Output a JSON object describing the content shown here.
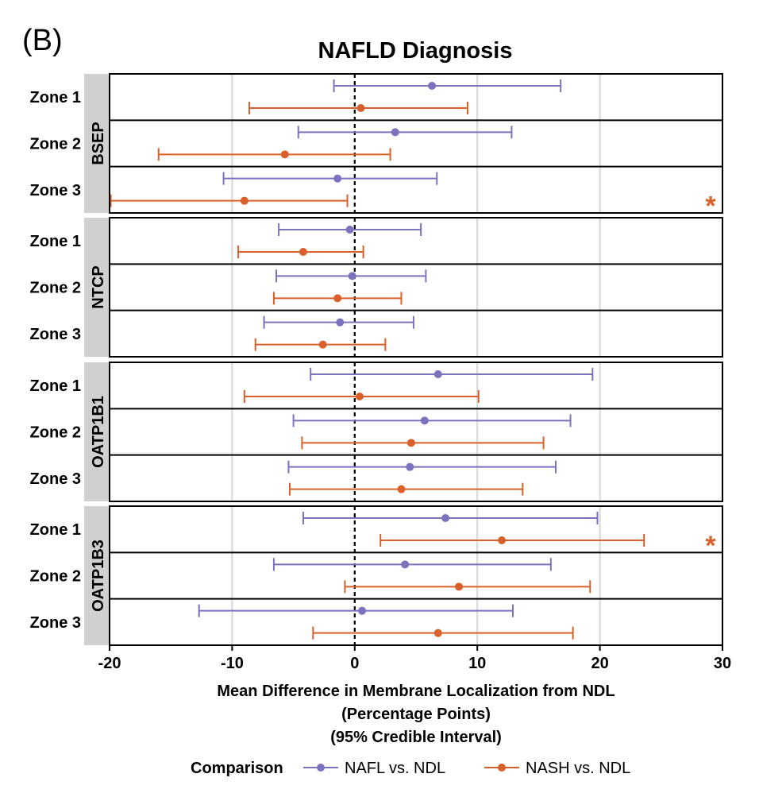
{
  "panel_label": "(B)",
  "chart_data": {
    "type": "forest",
    "title": "NAFLD Diagnosis",
    "xlabel_lines": [
      "Mean Difference in Membrane Localization from NDL",
      "(Percentage Points)",
      "(95% Credible Interval)"
    ],
    "xlim": [
      -20,
      30
    ],
    "xticks": [
      -20,
      -10,
      0,
      10,
      20,
      30
    ],
    "tick_labels": [
      "-20",
      "-10",
      "0",
      "10",
      "20",
      "30"
    ],
    "reference_line": 0,
    "grid": true,
    "legend": {
      "title": "Comparison",
      "position": "bottom",
      "entries": [
        "NAFL vs. NDL",
        "NASH vs. NDL"
      ]
    },
    "colors": {
      "NAFL vs. NDL": "#7b72be",
      "NASH vs. NDL": "#d9602a"
    },
    "facets": [
      {
        "name": "BSEP",
        "zones": [
          {
            "label": "Zone 1",
            "nafl": {
              "mean": 6.3,
              "lower": -1.7,
              "upper": 16.8
            },
            "nash": {
              "mean": 0.5,
              "lower": -8.6,
              "upper": 9.2
            }
          },
          {
            "label": "Zone 2",
            "nafl": {
              "mean": 3.3,
              "lower": -4.6,
              "upper": 12.8
            },
            "nash": {
              "mean": -5.7,
              "lower": -16.0,
              "upper": 2.9
            }
          },
          {
            "label": "Zone 3",
            "nafl": {
              "mean": -1.4,
              "lower": -10.7,
              "upper": 6.7
            },
            "nash": {
              "mean": -9.0,
              "lower": -19.9,
              "upper": -0.6
            }
          }
        ],
        "annotation": {
          "text": "*",
          "zone": 3,
          "row": "nash"
        }
      },
      {
        "name": "NTCP",
        "zones": [
          {
            "label": "Zone 1",
            "nafl": {
              "mean": -0.4,
              "lower": -6.2,
              "upper": 5.4
            },
            "nash": {
              "mean": -4.2,
              "lower": -9.5,
              "upper": 0.7
            }
          },
          {
            "label": "Zone 2",
            "nafl": {
              "mean": -0.2,
              "lower": -6.4,
              "upper": 5.8
            },
            "nash": {
              "mean": -1.4,
              "lower": -6.6,
              "upper": 3.8
            }
          },
          {
            "label": "Zone 3",
            "nafl": {
              "mean": -1.2,
              "lower": -7.4,
              "upper": 4.8
            },
            "nash": {
              "mean": -2.6,
              "lower": -8.1,
              "upper": 2.5
            }
          }
        ]
      },
      {
        "name": "OATP1B1",
        "zones": [
          {
            "label": "Zone 1",
            "nafl": {
              "mean": 6.8,
              "lower": -3.6,
              "upper": 19.4
            },
            "nash": {
              "mean": 0.4,
              "lower": -9.0,
              "upper": 10.1
            }
          },
          {
            "label": "Zone 2",
            "nafl": {
              "mean": 5.7,
              "lower": -5.0,
              "upper": 17.6
            },
            "nash": {
              "mean": 4.6,
              "lower": -4.3,
              "upper": 15.4
            }
          },
          {
            "label": "Zone 3",
            "nafl": {
              "mean": 4.5,
              "lower": -5.4,
              "upper": 16.4
            },
            "nash": {
              "mean": 3.8,
              "lower": -5.3,
              "upper": 13.7
            }
          }
        ]
      },
      {
        "name": "OATP1B3",
        "zones": [
          {
            "label": "Zone 1",
            "nafl": {
              "mean": 7.4,
              "lower": -4.2,
              "upper": 19.8
            },
            "nash": {
              "mean": 12.0,
              "lower": 2.1,
              "upper": 23.6
            }
          },
          {
            "label": "Zone 2",
            "nafl": {
              "mean": 4.1,
              "lower": -6.6,
              "upper": 16.0
            },
            "nash": {
              "mean": 8.5,
              "lower": -0.8,
              "upper": 19.2
            }
          },
          {
            "label": "Zone 3",
            "nafl": {
              "mean": 0.6,
              "lower": -12.7,
              "upper": 12.9
            },
            "nash": {
              "mean": 6.8,
              "lower": -3.4,
              "upper": 17.8
            }
          }
        ],
        "annotation": {
          "text": "*",
          "zone": 1,
          "row": "nash"
        }
      }
    ]
  }
}
